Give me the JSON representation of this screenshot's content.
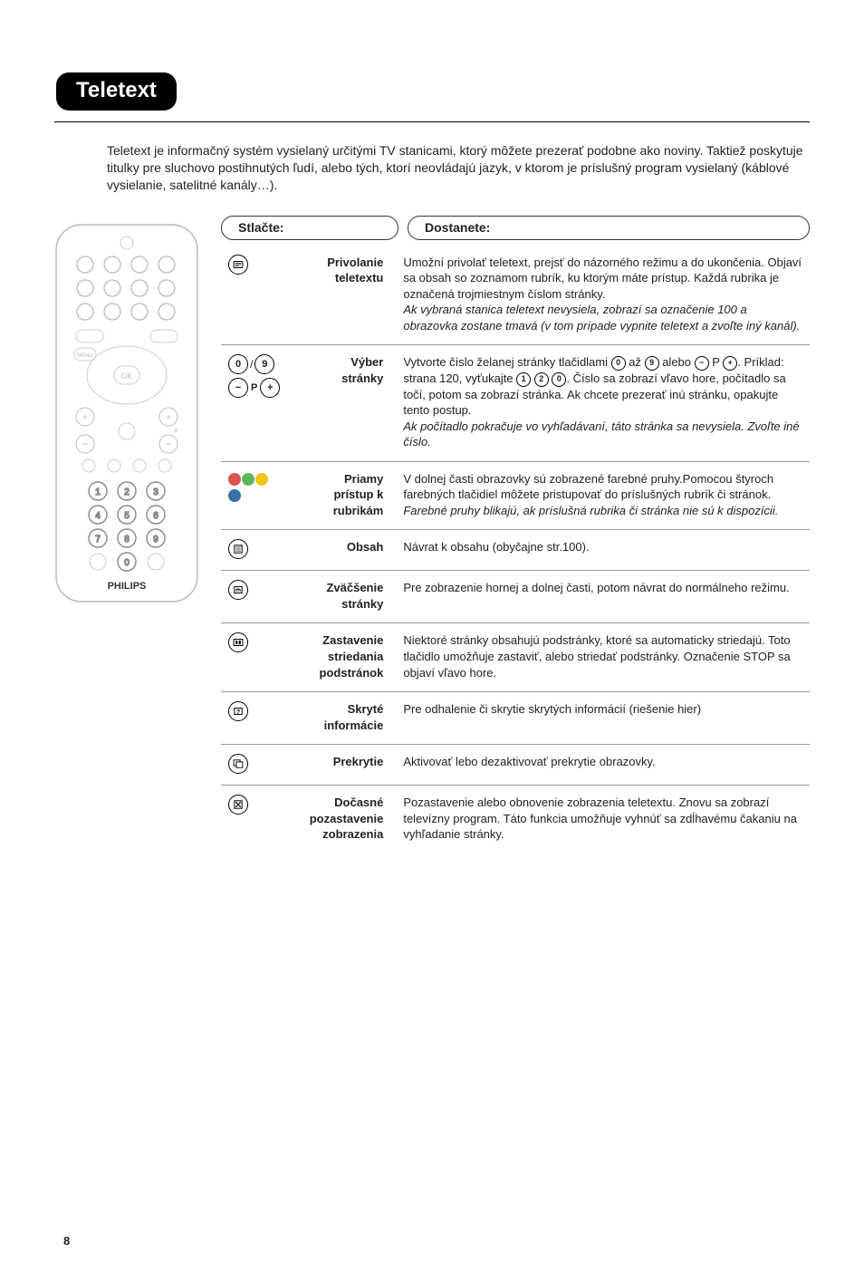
{
  "page_number": "8",
  "title": "Teletext",
  "intro": "Teletext je informačný systém vysielaný určitými TV stanicami, ktorý môžete prezerať podobne ako noviny. Taktiež poskytuje titulky pre sluchovo postihnutých ľudí, alebo tých, ktorí neovládajú jazyk, v ktorom je príslušný program vysielaný (káblové vysielanie, satelitné kanály…).",
  "header_left": "Stlačte:",
  "header_right": "Dostanete:",
  "rows": [
    {
      "icon": "teletext",
      "label": "Privolanie\nteletextu",
      "desc": "Umožní privolať teletext, prejsť do názorného režimu a do ukončenia. Objaví sa obsah so zoznamom rubrík, ku ktorým máte prístup. Každá rubrika je označená trojmiestnym číslom stránky.",
      "desc_italic": "Ak vybraná stanica teletext nevysiela, zobrazí sa označenie 100 a obrazovka zostane tmavá (v tom prípade vypnite teletext a zvoľte iný kanál)."
    },
    {
      "icon": "digits-and-p",
      "label": "Výber\nstránky",
      "desc_html": "Vytvorte číslo želanej stránky tlačidlami <span class='ficon sm txt'>0</span> až <span class='ficon sm txt'>9</span> alebo <span class='ficon sm txt'>−</span> P <span class='ficon sm txt'>+</span>. Príklad: strana 120, vyťukajte <span class='ficon sm txt'>1</span> <span class='ficon sm txt'>2</span> <span class='ficon sm txt'>0</span>. Číslo sa zobrazí vľavo hore, počítadlo sa točí, potom sa zobrazí stránka. Ak chcete prezerať inú stránku, opakujte tento postup.",
      "desc_italic": "Ak počítadlo pokračuje vo vyhľadávaní, táto stránka sa nevysiela. Zvoľte iné číslo."
    },
    {
      "icon": "color-dots",
      "label": "Priamy\nprístup k\nrubrikám",
      "desc": "V dolnej časti obrazovky sú zobrazené farebné pruhy.Pomocou štyroch farebných tlačidiel môžete pristupovať do príslušných rubrík či stránok.",
      "desc_italic": "Farebné pruhy blikajú, ak príslušná rubrika či stránka nie sú k dispozícii."
    },
    {
      "icon": "index",
      "label": "Obsah",
      "desc": "Návrat k obsahu (obyčajne str.100)."
    },
    {
      "icon": "enlarge",
      "label": "Zväčšenie\nstránky",
      "desc": "Pre zobrazenie hornej a dolnej časti, potom návrat do normálneho režimu."
    },
    {
      "icon": "hold",
      "label": "Zastavenie\nstriedania\npodstránok",
      "desc": "Niektoré stránky obsahujú podstránky, ktoré sa automaticky striedajú. Toto tlačidlo umožňuje zastaviť, alebo striedať podstránky. Označenie STOP sa objaví vľavo hore."
    },
    {
      "icon": "reveal",
      "label": "Skryté\ninformácie",
      "desc": "Pre odhalenie či skrytie skrytých informácií (riešenie hier)"
    },
    {
      "icon": "overlay",
      "label": "Prekrytie",
      "desc": "Aktivovať lebo dezaktivovať prekrytie obrazovky."
    },
    {
      "icon": "cancel",
      "label": "Dočasné\npozastavenie\nzobrazenia",
      "desc": "Pozastavenie alebo obnovenie zobrazenia teletextu. Znovu sa zobrazí televízny program. Táto funkcia umožňuje vyhnúť sa zdĺhavému čakaniu na vyhľadanie stránky."
    }
  ],
  "colors": {
    "dot_red": "#d9534f",
    "dot_green": "#5cb85c",
    "dot_yellow": "#f0c419",
    "dot_blue": "#3b6ea5"
  },
  "remote_brand": "PHILIPS"
}
